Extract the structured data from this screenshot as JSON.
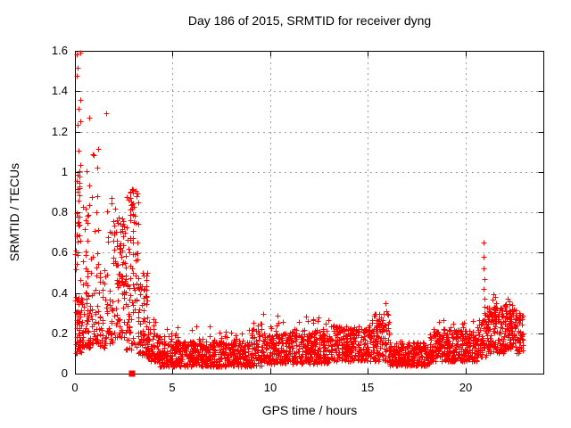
{
  "window": {
    "title": "Day 186 of 2015, SRMTID for receiver dyng"
  },
  "chart_data": {
    "type": "scatter",
    "title": "Day 186 of 2015, SRMTID for receiver dyng",
    "xlabel": "GPS time / hours",
    "ylabel": "SRMTID / TECUs",
    "xlim": [
      0,
      24
    ],
    "ylim": [
      0,
      1.6
    ],
    "grid": true,
    "legend": "none",
    "marker": "plus",
    "colors": {
      "points": "#ff0000",
      "grid": "#9e9e9e",
      "axis": "#000000",
      "background": "#ffffff",
      "text": "#000000"
    },
    "x_ticks": [
      {
        "v": 0,
        "label": "0"
      },
      {
        "v": 5,
        "label": "5"
      },
      {
        "v": 10,
        "label": "10"
      },
      {
        "v": 15,
        "label": "15"
      },
      {
        "v": 20,
        "label": "20"
      }
    ],
    "y_ticks": [
      {
        "v": 0.0,
        "label": "0"
      },
      {
        "v": 0.2,
        "label": "0.2"
      },
      {
        "v": 0.4,
        "label": "0.4"
      },
      {
        "v": 0.6,
        "label": "0.6"
      },
      {
        "v": 0.8,
        "label": "0.8"
      },
      {
        "v": 1.0,
        "label": "1"
      },
      {
        "v": 1.2,
        "label": "1.2"
      },
      {
        "v": 1.4,
        "label": "1.4"
      },
      {
        "v": 1.6,
        "label": "1.6"
      }
    ],
    "seed": 186,
    "point_bands": [
      {
        "x0": 0.02,
        "x1": 0.35,
        "n": 52,
        "ymin": 0.1,
        "ymax": 0.38,
        "skew": 1.4
      },
      {
        "x0": 0.02,
        "x1": 0.3,
        "n": 40,
        "ymin": 0.38,
        "ymax": 1.61,
        "skew": 0.95
      },
      {
        "x0": 0.35,
        "x1": 0.8,
        "n": 60,
        "ymin": 0.13,
        "ymax": 0.5,
        "skew": 1.8
      },
      {
        "x0": 0.38,
        "x1": 0.8,
        "n": 16,
        "ymin": 0.5,
        "ymax": 1.05,
        "skew": 1.0
      },
      {
        "x0": 0.8,
        "x1": 1.25,
        "n": 42,
        "ymin": 0.15,
        "ymax": 0.8,
        "skew": 1.9
      },
      {
        "x0": 0.85,
        "x1": 1.2,
        "n": 6,
        "ymin": 0.8,
        "ymax": 1.15,
        "skew": 1.0
      },
      {
        "x0": 1.25,
        "x1": 1.65,
        "n": 34,
        "ymin": 0.13,
        "ymax": 0.52,
        "skew": 1.7
      },
      {
        "x0": 1.65,
        "x1": 2.1,
        "n": 48,
        "ymin": 0.15,
        "ymax": 0.9,
        "skew": 1.6
      },
      {
        "x0": 2.1,
        "x1": 2.6,
        "n": 78,
        "ymin": 0.18,
        "ymax": 0.78,
        "skew": 1.3
      },
      {
        "x0": 2.6,
        "x1": 3.25,
        "n": 100,
        "ymin": 0.12,
        "ymax": 0.92,
        "skew": 1.3
      },
      {
        "x0": 3.25,
        "x1": 3.7,
        "n": 72,
        "ymin": 0.09,
        "ymax": 0.5,
        "skew": 1.5
      },
      {
        "x0": 3.7,
        "x1": 4.3,
        "n": 78,
        "ymin": 0.06,
        "ymax": 0.28,
        "skew": 1.6
      },
      {
        "x0": 4.3,
        "x1": 9.0,
        "n": 580,
        "ymin": 0.035,
        "ymax": 0.16,
        "skew": 1.3
      },
      {
        "x0": 4.3,
        "x1": 9.0,
        "n": 34,
        "ymin": 0.16,
        "ymax": 0.235,
        "skew": 1.2
      },
      {
        "x0": 9.0,
        "x1": 9.6,
        "n": 75,
        "ymin": 0.04,
        "ymax": 0.26,
        "skew": 1.5
      },
      {
        "x0": 9.6,
        "x1": 11.0,
        "n": 175,
        "ymin": 0.05,
        "ymax": 0.2,
        "skew": 1.35
      },
      {
        "x0": 9.6,
        "x1": 11.0,
        "n": 8,
        "ymin": 0.2,
        "ymax": 0.3,
        "skew": 1.0
      },
      {
        "x0": 11.0,
        "x1": 13.0,
        "n": 245,
        "ymin": 0.05,
        "ymax": 0.22,
        "skew": 1.35
      },
      {
        "x0": 11.0,
        "x1": 13.0,
        "n": 10,
        "ymin": 0.22,
        "ymax": 0.285,
        "skew": 1.0
      },
      {
        "x0": 13.0,
        "x1": 15.2,
        "n": 270,
        "ymin": 0.06,
        "ymax": 0.24,
        "skew": 1.35
      },
      {
        "x0": 15.2,
        "x1": 16.1,
        "n": 112,
        "ymin": 0.06,
        "ymax": 0.3,
        "skew": 1.25
      },
      {
        "x0": 16.1,
        "x1": 18.2,
        "n": 250,
        "ymin": 0.04,
        "ymax": 0.16,
        "skew": 1.3
      },
      {
        "x0": 18.2,
        "x1": 20.6,
        "n": 290,
        "ymin": 0.06,
        "ymax": 0.22,
        "skew": 1.35
      },
      {
        "x0": 18.2,
        "x1": 20.6,
        "n": 8,
        "ymin": 0.22,
        "ymax": 0.27,
        "skew": 1.0
      },
      {
        "x0": 20.6,
        "x1": 21.1,
        "n": 62,
        "ymin": 0.08,
        "ymax": 0.3,
        "skew": 1.2
      },
      {
        "x0": 21.1,
        "x1": 22.0,
        "n": 130,
        "ymin": 0.1,
        "ymax": 0.33,
        "skew": 1.15
      },
      {
        "x0": 21.4,
        "x1": 21.6,
        "n": 12,
        "ymin": 0.25,
        "ymax": 0.4,
        "skew": 1.0
      },
      {
        "x0": 22.0,
        "x1": 22.6,
        "n": 95,
        "ymin": 0.12,
        "ymax": 0.35,
        "skew": 1.1
      },
      {
        "x0": 22.6,
        "x1": 22.95,
        "n": 42,
        "ymin": 0.1,
        "ymax": 0.3,
        "skew": 1.2
      }
    ],
    "outlier_points": [
      [
        0.75,
        1.27
      ],
      [
        1.6,
        1.29
      ],
      [
        15.9,
        0.35
      ],
      [
        15.95,
        0.31
      ],
      [
        20.92,
        0.65
      ],
      [
        20.95,
        0.58
      ],
      [
        20.93,
        0.52
      ],
      [
        20.97,
        0.47
      ],
      [
        20.94,
        0.42
      ],
      [
        20.96,
        0.37
      ],
      [
        20.98,
        0.33
      ],
      [
        21.0,
        0.3
      ],
      [
        20.99,
        0.27
      ],
      [
        22.15,
        0.37
      ],
      [
        22.25,
        0.36
      ]
    ],
    "square_point": [
      2.93,
      0.0
    ]
  }
}
